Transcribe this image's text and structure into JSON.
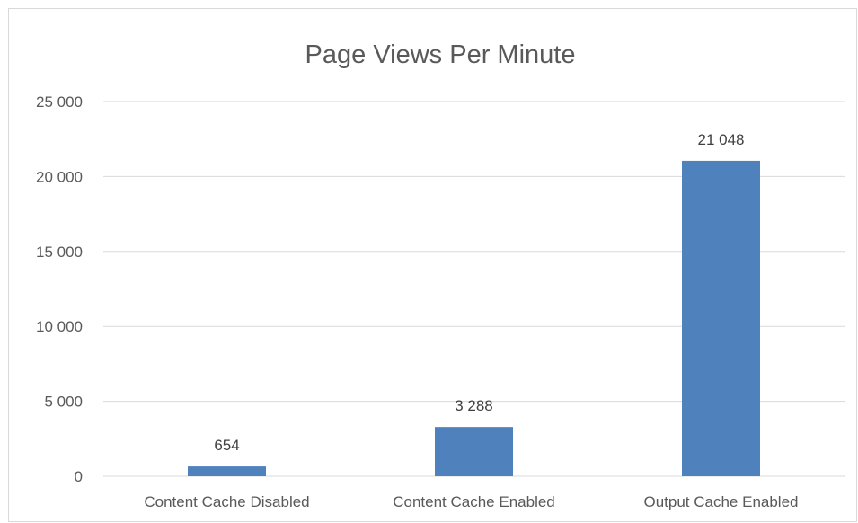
{
  "chart_data": {
    "type": "bar",
    "title": "Page Views Per Minute",
    "categories": [
      "Content Cache Disabled",
      "Content Cache Enabled",
      "Output Cache Enabled"
    ],
    "values": [
      654,
      3288,
      21048
    ],
    "data_labels": [
      "654",
      "3 288",
      "21 048"
    ],
    "y_ticks": [
      0,
      5000,
      10000,
      15000,
      20000,
      25000
    ],
    "y_tick_labels": [
      "0",
      "5 000",
      "10 000",
      "15 000",
      "20 000",
      "25 000"
    ],
    "ylim": [
      0,
      25000
    ],
    "xlabel": "",
    "ylabel": "",
    "grid": true,
    "legend": "none",
    "bar_color": "#4f81bd"
  }
}
